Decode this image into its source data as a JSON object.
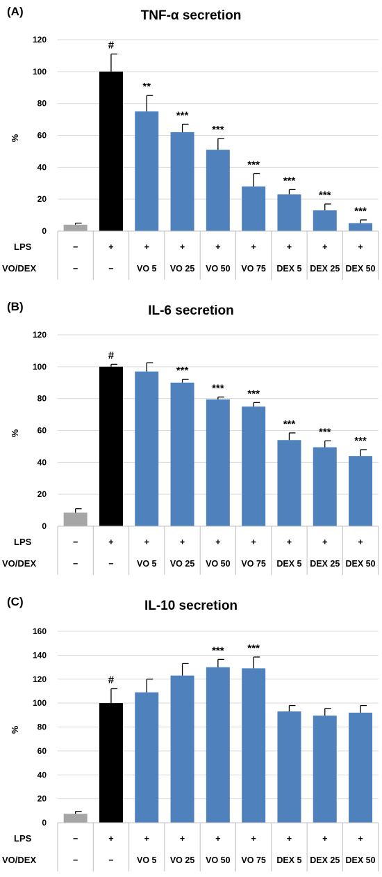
{
  "row_labels": {
    "lps": "LPS",
    "vodex": "VO/DEX"
  },
  "lps_row": [
    "−",
    "+",
    "+",
    "+",
    "+",
    "+",
    "+",
    "+",
    "+"
  ],
  "vodex_row": [
    "−",
    "−",
    "VO 5",
    "VO 25",
    "VO 50",
    "VO 75",
    "DEX 5",
    "DEX 25",
    "DEX 50"
  ],
  "colors": {
    "control": "#a6a6a6",
    "lps": "#000000",
    "treatment": "#4f81bd",
    "grid": "#d9d9d9",
    "axis": "#bfbfbf"
  },
  "y_unit_label": "%",
  "chart_data": [
    {
      "panel": "(A)",
      "title": "TNF-α secretion",
      "type": "bar",
      "categories": [
        "−/−",
        "+/−",
        "+/VO 5",
        "+/VO 25",
        "+/VO 50",
        "+/VO 75",
        "+/DEX 5",
        "+/DEX 25",
        "+/DEX 50"
      ],
      "values": [
        4,
        100,
        75,
        62,
        51,
        28,
        23,
        13,
        5
      ],
      "errors": [
        1,
        11,
        10,
        5,
        7,
        8,
        3,
        4,
        2
      ],
      "significance": [
        "",
        "#",
        "**",
        "***",
        "***",
        "***",
        "***",
        "***",
        "***"
      ],
      "ylabel": "%",
      "ylim": [
        0,
        120
      ],
      "yticks": [
        0,
        20,
        40,
        60,
        80,
        100,
        120
      ],
      "grid": true
    },
    {
      "panel": "(B)",
      "title": "IL-6 secretion",
      "type": "bar",
      "categories": [
        "−/−",
        "+/−",
        "+/VO 5",
        "+/VO 25",
        "+/VO 50",
        "+/VO 75",
        "+/DEX 5",
        "+/DEX 25",
        "+/DEX 50"
      ],
      "values": [
        8.5,
        100,
        97,
        90,
        79.5,
        75,
        54,
        49.5,
        44
      ],
      "errors": [
        2.5,
        1.5,
        5.5,
        2,
        1.5,
        2.5,
        4.5,
        4,
        4
      ],
      "significance": [
        "",
        "#",
        "",
        "***",
        "***",
        "***",
        "***",
        "***",
        "***"
      ],
      "ylabel": "%",
      "ylim": [
        0,
        120
      ],
      "yticks": [
        0,
        20,
        40,
        60,
        80,
        100,
        120
      ],
      "grid": true
    },
    {
      "panel": "(C)",
      "title": "IL-10 secretion",
      "type": "bar",
      "categories": [
        "−/−",
        "+/−",
        "+/VO 5",
        "+/VO 25",
        "+/VO 50",
        "+/VO 75",
        "+/DEX 5",
        "+/DEX 25",
        "+/DEX 50"
      ],
      "values": [
        7.5,
        100,
        109,
        123,
        130,
        129,
        93,
        89.5,
        92
      ],
      "errors": [
        2,
        12,
        11,
        10,
        6.5,
        9.5,
        5,
        6,
        6
      ],
      "significance": [
        "",
        "#",
        "",
        "",
        "***",
        "***",
        "",
        "",
        ""
      ],
      "ylabel": "%",
      "ylim": [
        0,
        160
      ],
      "yticks": [
        0,
        20,
        40,
        60,
        80,
        100,
        120,
        140,
        160
      ],
      "grid": true
    }
  ]
}
